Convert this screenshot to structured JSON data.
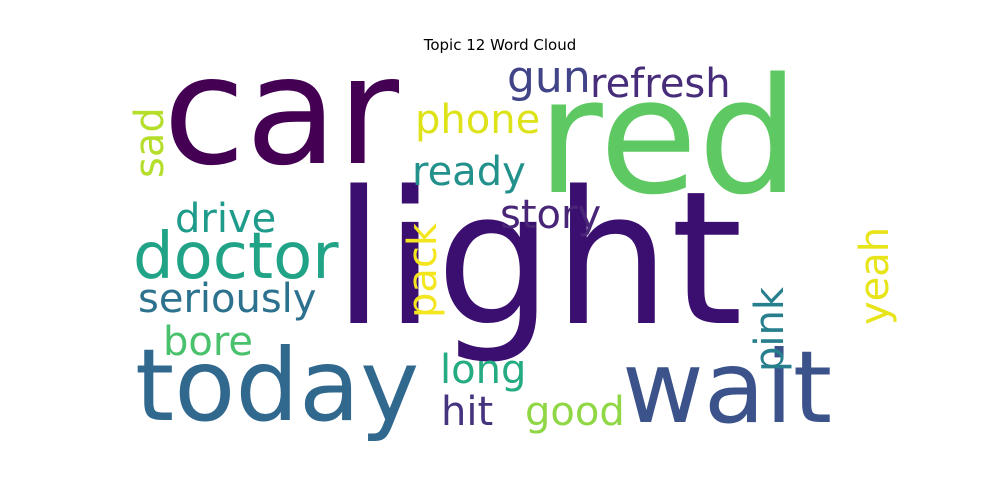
{
  "chart_data": {
    "type": "wordcloud",
    "title": "Topic 12 Word Cloud",
    "words": [
      {
        "text": "car",
        "color": "#440154"
      },
      {
        "text": "red",
        "color": "#5ec962"
      },
      {
        "text": "light",
        "color": "#3b0f70"
      },
      {
        "text": "today",
        "color": "#31688e"
      },
      {
        "text": "wait",
        "color": "#3b528b"
      },
      {
        "text": "doctor",
        "color": "#20a386"
      },
      {
        "text": "seriously",
        "color": "#2c728e"
      },
      {
        "text": "refresh",
        "color": "#472c7a"
      },
      {
        "text": "gun",
        "color": "#414487"
      },
      {
        "text": "phone",
        "color": "#dde318"
      },
      {
        "text": "ready",
        "color": "#22918c"
      },
      {
        "text": "story",
        "color": "#482576"
      },
      {
        "text": "drive",
        "color": "#1e9b8a"
      },
      {
        "text": "sad",
        "color": "#b5de2b"
      },
      {
        "text": "pack",
        "color": "#f3e51e"
      },
      {
        "text": "yeah",
        "color": "#e7e419"
      },
      {
        "text": "pink",
        "color": "#277f8e"
      },
      {
        "text": "bore",
        "color": "#4ac16d"
      },
      {
        "text": "long",
        "color": "#25ab82"
      },
      {
        "text": "hit",
        "color": "#46337e"
      },
      {
        "text": "good",
        "color": "#8fd744"
      }
    ]
  }
}
